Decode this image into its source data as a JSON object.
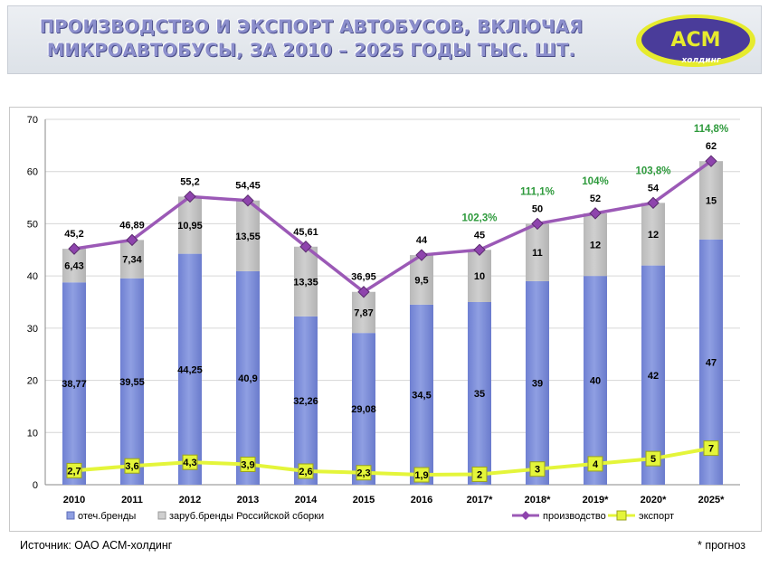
{
  "header": {
    "title_line1": "ПРОИЗВОДСТВО И ЭКСПОРТ АВТОБУСОВ, ВКЛЮЧАЯ",
    "title_line2": "МИКРОАВТОБУСЫ, ЗА 2010 – 2025 ГОДЫ ТЫС. ШТ.",
    "logo_text": "АСМ",
    "logo_subtext": "холдинг"
  },
  "footer": {
    "source": "Источник: ОАО АСМ-холдинг",
    "note": "* прогноз"
  },
  "colors": {
    "domestic": "#8f9fe2",
    "foreign": "#cfcfcf",
    "production_line": "#9b59b6",
    "export_line": "#e4f53a",
    "growth_label": "#2e9a3c"
  },
  "chart_data": {
    "type": "bar",
    "stacked": true,
    "categories": [
      "2010",
      "2011",
      "2012",
      "2013",
      "2014",
      "2015",
      "2016",
      "2017*",
      "2018*",
      "2019*",
      "2020*",
      "2025*"
    ],
    "ylim": [
      0,
      70
    ],
    "yticks": [
      0,
      10,
      20,
      30,
      40,
      50,
      60,
      70
    ],
    "grid": true,
    "legend_position": "bottom",
    "series": [
      {
        "name": "отеч.бренды",
        "kind": "bar",
        "values": [
          38.77,
          39.55,
          44.25,
          40.9,
          32.26,
          29.08,
          34.5,
          35,
          39,
          40,
          42,
          47
        ],
        "labels": [
          "38,77",
          "39,55",
          "44,25",
          "40,9",
          "32,26",
          "29,08",
          "34,5",
          "35",
          "39",
          "40",
          "42",
          "47"
        ]
      },
      {
        "name": "заруб.бренды Российской сборки",
        "kind": "bar",
        "values": [
          6.43,
          7.34,
          10.95,
          13.55,
          13.35,
          7.87,
          9.5,
          10,
          11,
          12,
          12,
          15
        ],
        "labels": [
          "6,43",
          "7,34",
          "10,95",
          "13,55",
          "13,35",
          "7,87",
          "9,5",
          "10",
          "11",
          "12",
          "12",
          "15"
        ]
      },
      {
        "name": "производство",
        "kind": "line",
        "values": [
          45.2,
          46.89,
          55.2,
          54.45,
          45.61,
          36.95,
          44,
          45,
          50,
          52,
          54,
          62
        ],
        "labels": [
          "45,2",
          "46,89",
          "55,2",
          "54,45",
          "45,61",
          "36,95",
          "44",
          "45",
          "50",
          "52",
          "54",
          "62"
        ]
      },
      {
        "name": "экспорт",
        "kind": "line",
        "values": [
          2.7,
          3.6,
          4.3,
          3.9,
          2.6,
          2.3,
          1.9,
          2,
          3,
          4,
          5,
          7
        ],
        "labels": [
          "2,7",
          "3,6",
          "4,3",
          "3,9",
          "2,6",
          "2,3",
          "1,9",
          "2",
          "3",
          "4",
          "5",
          "7"
        ]
      }
    ],
    "growth_annotations": [
      "",
      "",
      "",
      "",
      "",
      "",
      "",
      "102,3%",
      "111,1%",
      "104%",
      "103,8%",
      "114,8%"
    ]
  }
}
